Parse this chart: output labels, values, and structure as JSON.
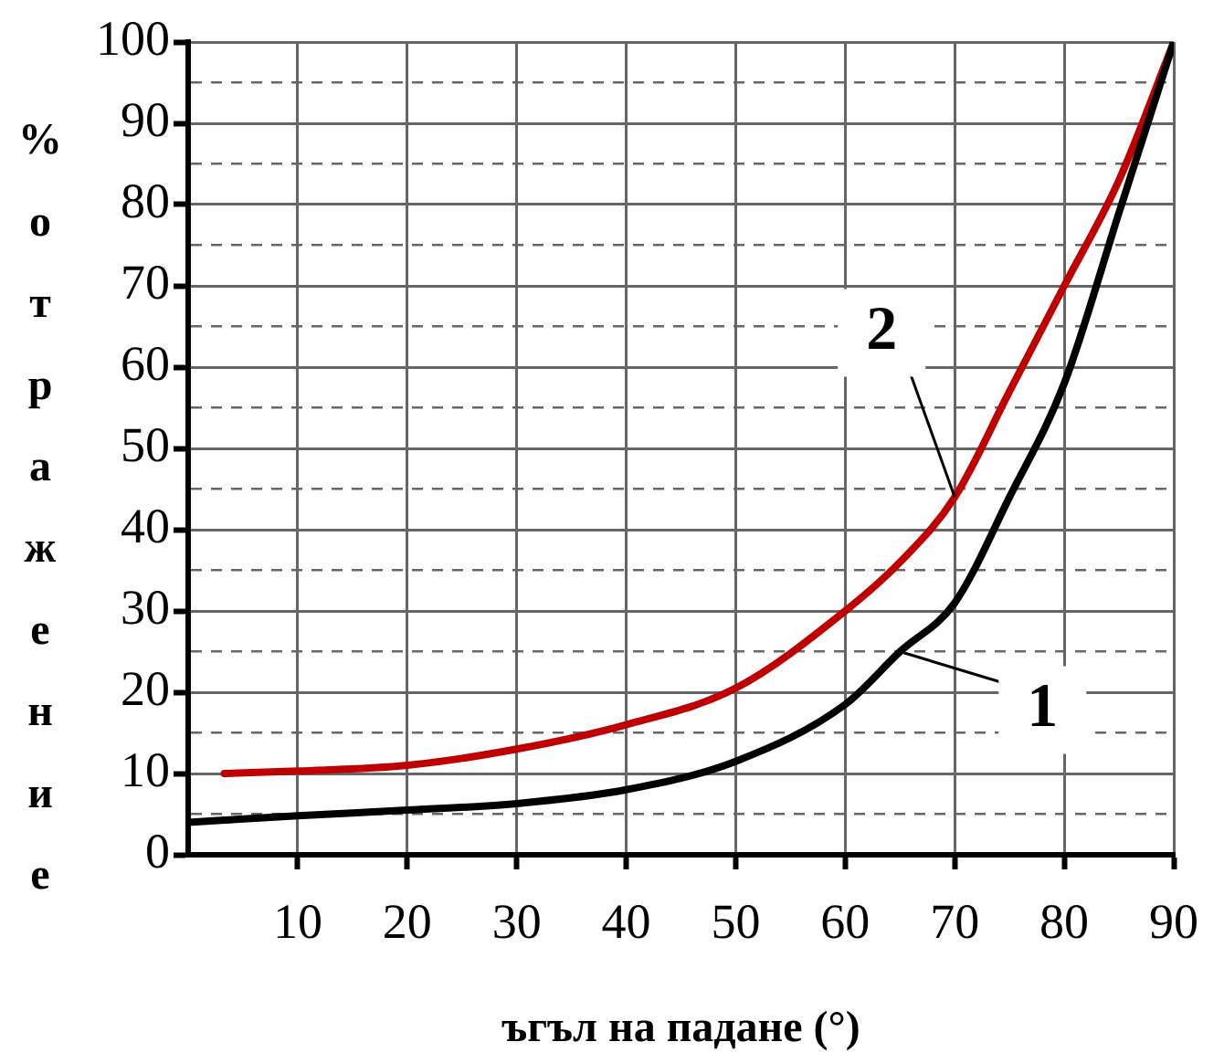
{
  "chart_data": {
    "type": "line",
    "xlabel": "ъгъл на падане (°)",
    "ylabel": "% отражение",
    "xlim": [
      0,
      90
    ],
    "xticks": [
      10,
      20,
      30,
      40,
      50,
      60,
      70,
      80,
      90
    ],
    "ylim": [
      0,
      100
    ],
    "yticks": [
      0,
      {
        "value": 5,
        "label": null
      },
      10,
      {
        "value": 15,
        "label": null
      },
      20,
      {
        "value": 25,
        "label": null
      },
      30,
      {
        "value": 35,
        "label": null
      },
      40,
      {
        "value": 45,
        "label": null
      },
      50,
      {
        "value": 55,
        "label": null
      },
      60,
      {
        "value": 65,
        "label": null
      },
      70,
      {
        "value": 75,
        "label": null
      },
      80,
      {
        "value": 85,
        "label": null
      },
      90,
      {
        "value": 95,
        "label": null
      },
      100
    ],
    "grid": true,
    "marker": "none",
    "line_style": "solid",
    "series": [
      {
        "name": "1",
        "color": "#000000",
        "x": [
          0,
          10,
          20,
          30,
          40,
          50,
          60,
          65,
          70,
          75,
          80,
          85,
          90
        ],
        "values": [
          4,
          4.8,
          5.5,
          6.3,
          8,
          11.5,
          18.5,
          25,
          31,
          44,
          58,
          79,
          100
        ]
      },
      {
        "name": "2",
        "color": "#c00000",
        "x": [
          3.3,
          10,
          20,
          30,
          40,
          50,
          60,
          65,
          70,
          75,
          80,
          85,
          90
        ],
        "values": [
          10,
          10.3,
          11,
          13,
          16,
          20.5,
          30,
          36,
          44,
          57,
          70,
          83,
          100
        ]
      }
    ]
  }
}
